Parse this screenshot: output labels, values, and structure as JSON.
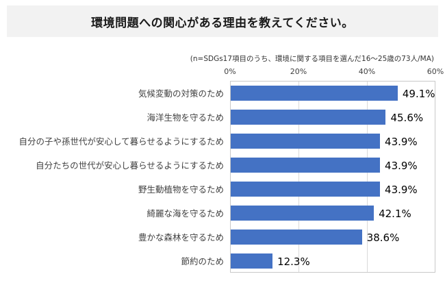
{
  "title": "環境問題への関心がある理由を教えてください。",
  "subtitle": "(n=SDGs17項目のうち、環境に関する項目を選んだ16〜25歳の73人/MA)",
  "chart_data": {
    "type": "bar",
    "orientation": "horizontal",
    "title": "環境問題への関心がある理由を教えてください。",
    "subtitle": "(n=SDGs17項目のうち、環境に関する項目を選んだ16〜25歳の73人/MA)",
    "categories": [
      "気候変動の対策のため",
      "海洋生物を守るため",
      "自分の子や孫世代が安心して暮らせるようにするため",
      "自分たちの世代が安心し暮らせるようにするため",
      "野生動植物を守るため",
      "綺麗な海を守るため",
      "豊かな森林を守るため",
      "節約のため"
    ],
    "values": [
      49.1,
      45.6,
      43.9,
      43.9,
      43.9,
      42.1,
      38.6,
      12.3
    ],
    "value_labels": [
      "49.1%",
      "45.6%",
      "43.9%",
      "43.9%",
      "43.9%",
      "42.1%",
      "38.6%",
      "12.3%"
    ],
    "x_ticks": [
      {
        "label": "0%",
        "value": 0
      },
      {
        "label": "20%",
        "value": 20
      },
      {
        "label": "40%",
        "value": 40
      },
      {
        "label": "60%",
        "value": 60
      }
    ],
    "xlim": [
      0,
      60
    ],
    "bar_color": "#4472c4",
    "grid": true,
    "legend": "none"
  }
}
